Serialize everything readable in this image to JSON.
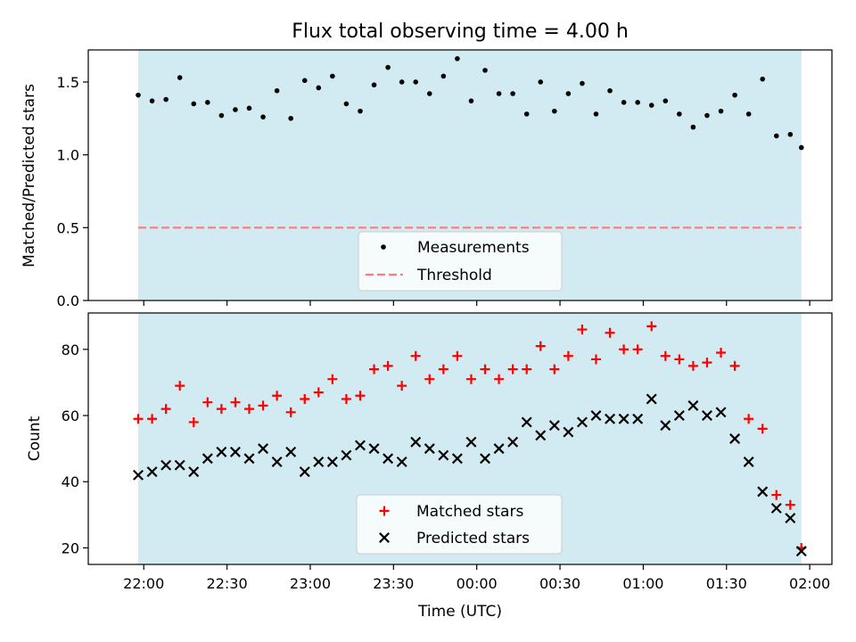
{
  "title": "Flux total observing time = 4.00 h",
  "colors": {
    "shade": "#add8e6",
    "threshold": "#ff7b7b",
    "matched": "#ff0000",
    "predicted": "#000000",
    "points": "#000000"
  },
  "chart_data": [
    {
      "type": "scatter",
      "ylabel": "Matched/Predicted stars",
      "ylim": [
        0.0,
        1.72
      ],
      "yticks": [
        0.0,
        0.5,
        1.0,
        1.5
      ],
      "ytick_labels": [
        "0.0",
        "0.5",
        "1.0",
        "1.5"
      ],
      "shaded_span": [
        "21:58",
        "01:57"
      ],
      "threshold": 0.5,
      "legend": {
        "placement": "lower center",
        "entries": [
          "Measurements",
          "Threshold"
        ]
      },
      "series": [
        {
          "name": "Measurements",
          "x": [
            "21:58",
            "22:03",
            "22:08",
            "22:13",
            "22:18",
            "22:23",
            "22:28",
            "22:33",
            "22:38",
            "22:43",
            "22:48",
            "22:53",
            "22:58",
            "23:03",
            "23:08",
            "23:13",
            "23:18",
            "23:23",
            "23:28",
            "23:33",
            "23:38",
            "23:43",
            "23:48",
            "23:53",
            "23:58",
            "00:03",
            "00:08",
            "00:13",
            "00:18",
            "00:23",
            "00:28",
            "00:33",
            "00:38",
            "00:43",
            "00:48",
            "00:53",
            "00:58",
            "01:03",
            "01:08",
            "01:13",
            "01:18",
            "01:23",
            "01:28",
            "01:33",
            "01:38",
            "01:43",
            "01:48",
            "01:53",
            "01:57"
          ],
          "y": [
            1.41,
            1.37,
            1.38,
            1.53,
            1.35,
            1.36,
            1.27,
            1.31,
            1.32,
            1.26,
            1.44,
            1.25,
            1.51,
            1.46,
            1.54,
            1.35,
            1.3,
            1.48,
            1.6,
            1.5,
            1.5,
            1.42,
            1.54,
            1.66,
            1.37,
            1.58,
            1.42,
            1.42,
            1.28,
            1.5,
            1.3,
            1.42,
            1.49,
            1.28,
            1.44,
            1.36,
            1.36,
            1.34,
            1.37,
            1.28,
            1.19,
            1.27,
            1.3,
            1.41,
            1.28,
            1.52,
            1.13,
            1.14,
            1.05
          ]
        }
      ]
    },
    {
      "type": "scatter",
      "xlabel": "Time (UTC)",
      "ylabel": "Count",
      "ylim": [
        15,
        91
      ],
      "yticks": [
        20,
        40,
        60,
        80
      ],
      "ytick_labels": [
        "20",
        "40",
        "60",
        "80"
      ],
      "xticks": [
        "22:00",
        "22:30",
        "23:00",
        "23:30",
        "00:00",
        "00:30",
        "01:00",
        "01:30",
        "02:00"
      ],
      "shaded_span": [
        "21:58",
        "01:57"
      ],
      "legend": {
        "placement": "lower center",
        "entries": [
          "Matched stars",
          "Predicted stars"
        ]
      },
      "series": [
        {
          "name": "Matched stars",
          "x": [
            "21:58",
            "22:03",
            "22:08",
            "22:13",
            "22:18",
            "22:23",
            "22:28",
            "22:33",
            "22:38",
            "22:43",
            "22:48",
            "22:53",
            "22:58",
            "23:03",
            "23:08",
            "23:13",
            "23:18",
            "23:23",
            "23:28",
            "23:33",
            "23:38",
            "23:43",
            "23:48",
            "23:53",
            "23:58",
            "00:03",
            "00:08",
            "00:13",
            "00:18",
            "00:23",
            "00:28",
            "00:33",
            "00:38",
            "00:43",
            "00:48",
            "00:53",
            "00:58",
            "01:03",
            "01:08",
            "01:13",
            "01:18",
            "01:23",
            "01:28",
            "01:33",
            "01:38",
            "01:43",
            "01:48",
            "01:53",
            "01:57"
          ],
          "y": [
            59,
            59,
            62,
            69,
            58,
            64,
            62,
            64,
            62,
            63,
            66,
            61,
            65,
            67,
            71,
            65,
            66,
            74,
            75,
            69,
            78,
            71,
            74,
            78,
            71,
            74,
            71,
            74,
            74,
            81,
            74,
            78,
            86,
            77,
            85,
            80,
            80,
            87,
            78,
            77,
            75,
            76,
            79,
            75,
            59,
            56,
            36,
            33,
            20
          ]
        },
        {
          "name": "Predicted stars",
          "x": [
            "21:58",
            "22:03",
            "22:08",
            "22:13",
            "22:18",
            "22:23",
            "22:28",
            "22:33",
            "22:38",
            "22:43",
            "22:48",
            "22:53",
            "22:58",
            "23:03",
            "23:08",
            "23:13",
            "23:18",
            "23:23",
            "23:28",
            "23:33",
            "23:38",
            "23:43",
            "23:48",
            "23:53",
            "23:58",
            "00:03",
            "00:08",
            "00:13",
            "00:18",
            "00:23",
            "00:28",
            "00:33",
            "00:38",
            "00:43",
            "00:48",
            "00:53",
            "00:58",
            "01:03",
            "01:08",
            "01:13",
            "01:18",
            "01:23",
            "01:28",
            "01:33",
            "01:38",
            "01:43",
            "01:48",
            "01:53",
            "01:57"
          ],
          "y": [
            42,
            43,
            45,
            45,
            43,
            47,
            49,
            49,
            47,
            50,
            46,
            49,
            43,
            46,
            46,
            48,
            51,
            50,
            47,
            46,
            52,
            50,
            48,
            47,
            52,
            47,
            50,
            52,
            58,
            54,
            57,
            55,
            58,
            60,
            59,
            59,
            59,
            65,
            57,
            60,
            63,
            60,
            61,
            53,
            46,
            37,
            32,
            29,
            19
          ]
        }
      ]
    }
  ]
}
